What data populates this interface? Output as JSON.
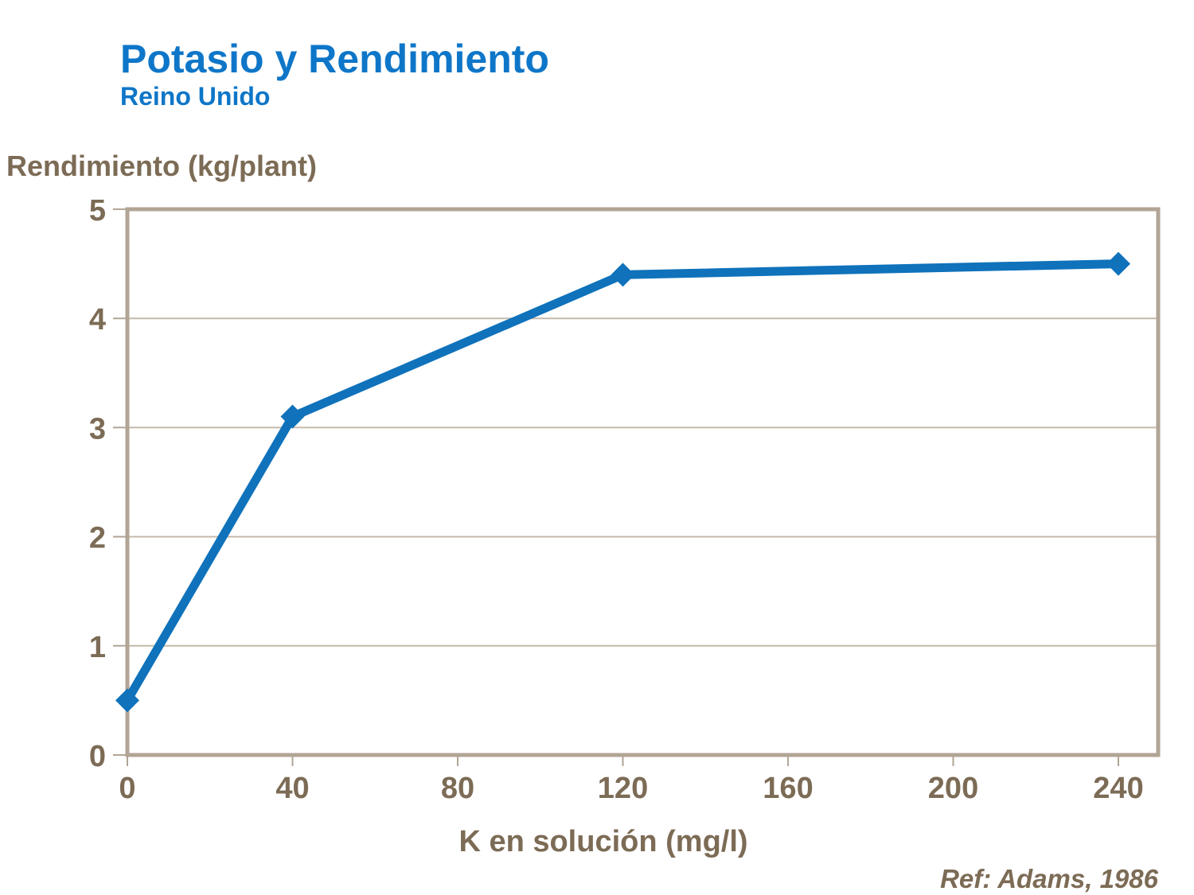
{
  "slide": {
    "title": "Potasio y Rendimiento",
    "subtitle": "Reino Unido",
    "reference": "Ref: Adams, 1986"
  },
  "colors": {
    "title_blue": "#0E76C8",
    "line_blue": "#0F72BB",
    "text_brown": "#7C6B55",
    "axis_frame": "#B2A595",
    "gridline": "#C6BAAA",
    "background": "#FFFFFF"
  },
  "chart_data": {
    "type": "line",
    "title": "Potasio y Rendimiento",
    "subtitle": "Reino Unido",
    "xlabel": "K en solución (mg/l)",
    "ylabel": "Rendimiento (kg/plant)",
    "x": [
      0,
      40,
      120,
      240
    ],
    "y": [
      0.5,
      3.1,
      4.4,
      4.5
    ],
    "xlim": [
      0,
      240
    ],
    "ylim": [
      0,
      5
    ],
    "x_ticks": [
      0,
      40,
      80,
      120,
      160,
      200,
      240
    ],
    "y_ticks": [
      0,
      1,
      2,
      3,
      4,
      5
    ],
    "grid": "horizontal-only",
    "legend": "none",
    "marker": "diamond",
    "annotation": "Ref: Adams, 1986"
  }
}
